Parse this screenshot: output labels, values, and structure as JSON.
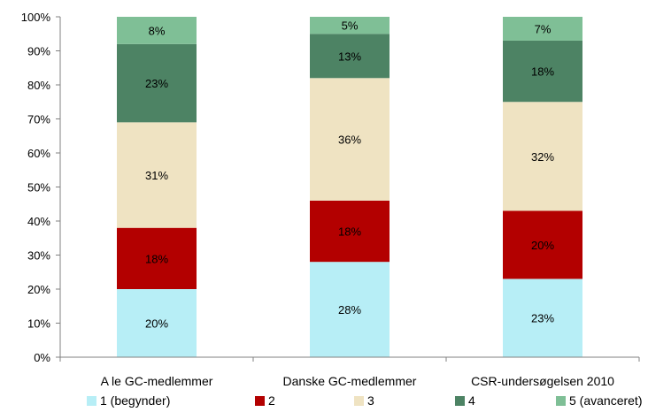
{
  "chart_data": {
    "type": "bar",
    "stacked": true,
    "title": "",
    "xlabel": "",
    "ylabel": "",
    "ylim": [
      0,
      100
    ],
    "y_ticks": [
      "0%",
      "10%",
      "20%",
      "30%",
      "40%",
      "50%",
      "60%",
      "70%",
      "80%",
      "90%",
      "100%"
    ],
    "categories": [
      "A le GC-medlemmer",
      "Danske GC-medlemmer",
      "CSR-undersøgelsen 2010"
    ],
    "series": [
      {
        "name": "1 (begynder)",
        "color": "#b7eef6",
        "values": [
          20,
          28,
          23
        ],
        "labels": [
          "20%",
          "28%",
          "23%"
        ]
      },
      {
        "name": "2",
        "color": "#b30000",
        "values": [
          18,
          18,
          20
        ],
        "labels": [
          "18%",
          "18%",
          "20%"
        ]
      },
      {
        "name": "3",
        "color": "#efe3c2",
        "values": [
          31,
          36,
          32
        ],
        "labels": [
          "31%",
          "36%",
          "32%"
        ]
      },
      {
        "name": "4",
        "color": "#4d8364",
        "values": [
          23,
          13,
          18
        ],
        "labels": [
          "23%",
          "13%",
          "18%"
        ]
      },
      {
        "name": "5 (avanceret)",
        "color": "#7fbf96",
        "values": [
          8,
          5,
          7
        ],
        "labels": [
          "8%",
          "5%",
          "7%"
        ]
      }
    ],
    "grid": false,
    "legend": "bottom"
  }
}
